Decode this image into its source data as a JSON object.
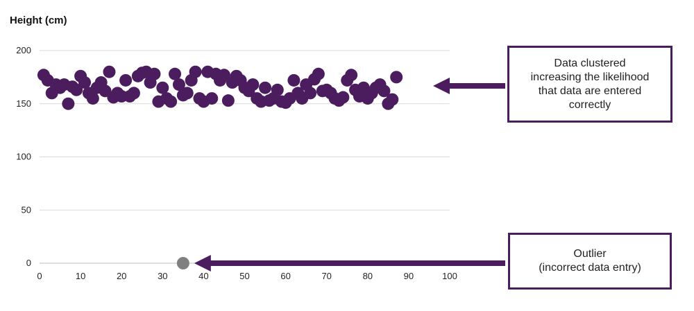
{
  "chart_data": {
    "type": "scatter",
    "ylabel": "Height (cm)",
    "xlabel": "",
    "xlim": [
      0,
      100
    ],
    "ylim": [
      0,
      200
    ],
    "xticks": [
      0,
      10,
      20,
      30,
      40,
      50,
      60,
      70,
      80,
      90,
      100
    ],
    "yticks": [
      0,
      50,
      100,
      150,
      200
    ],
    "grid": "horizontal",
    "colors": {
      "cluster": "#4b1c5e",
      "outlier": "#808080",
      "arrow": "#4b1c5e",
      "grid": "#d9d9d9"
    },
    "series": [
      {
        "points": [
          [
            1,
            177
          ],
          [
            2,
            172
          ],
          [
            3,
            160
          ],
          [
            4,
            168
          ],
          [
            5,
            165
          ],
          [
            6,
            168
          ],
          [
            7,
            150
          ],
          [
            8,
            166
          ],
          [
            9,
            163
          ],
          [
            10,
            176
          ],
          [
            11,
            170
          ],
          [
            12,
            160
          ],
          [
            13,
            155
          ],
          [
            14,
            165
          ],
          [
            15,
            170
          ],
          [
            16,
            162
          ],
          [
            17,
            180
          ],
          [
            18,
            156
          ],
          [
            19,
            160
          ],
          [
            20,
            157
          ],
          [
            21,
            172
          ],
          [
            22,
            157
          ],
          [
            23,
            160
          ],
          [
            24,
            176
          ],
          [
            25,
            179
          ],
          [
            26,
            180
          ],
          [
            27,
            170
          ],
          [
            28,
            178
          ],
          [
            29,
            152
          ],
          [
            30,
            165
          ],
          [
            31,
            155
          ],
          [
            32,
            152
          ],
          [
            33,
            178
          ],
          [
            34,
            168
          ],
          [
            35,
            158
          ],
          [
            36,
            160
          ],
          [
            37,
            172
          ],
          [
            38,
            180
          ],
          [
            39,
            155
          ],
          [
            40,
            152
          ],
          [
            41,
            180
          ],
          [
            42,
            155
          ],
          [
            43,
            178
          ],
          [
            44,
            172
          ],
          [
            45,
            177
          ],
          [
            46,
            153
          ],
          [
            47,
            170
          ],
          [
            48,
            176
          ],
          [
            49,
            172
          ],
          [
            50,
            165
          ],
          [
            51,
            162
          ],
          [
            52,
            168
          ],
          [
            53,
            155
          ],
          [
            54,
            152
          ],
          [
            55,
            165
          ],
          [
            56,
            153
          ],
          [
            57,
            155
          ],
          [
            58,
            163
          ],
          [
            59,
            152
          ],
          [
            60,
            151
          ],
          [
            61,
            155
          ],
          [
            62,
            172
          ],
          [
            63,
            160
          ],
          [
            64,
            155
          ],
          [
            65,
            168
          ],
          [
            66,
            160
          ],
          [
            67,
            173
          ],
          [
            68,
            178
          ],
          [
            69,
            162
          ],
          [
            70,
            163
          ],
          [
            71,
            160
          ],
          [
            72,
            155
          ],
          [
            73,
            153
          ],
          [
            74,
            156
          ],
          [
            75,
            172
          ],
          [
            76,
            177
          ],
          [
            77,
            163
          ],
          [
            78,
            157
          ],
          [
            79,
            165
          ],
          [
            80,
            155
          ],
          [
            81,
            160
          ],
          [
            82,
            165
          ],
          [
            83,
            168
          ],
          [
            84,
            162
          ],
          [
            85,
            150
          ],
          [
            86,
            154
          ],
          [
            87,
            175
          ]
        ]
      },
      {
        "points": [
          [
            35,
            0
          ]
        ]
      }
    ],
    "annotations": [
      {
        "id": "cluster",
        "lines": [
          "Data clustered",
          "increasing the likelihood",
          "that data are entered",
          "correctly"
        ]
      },
      {
        "id": "outlier",
        "lines": [
          "Outlier",
          "(incorrect data entry)"
        ]
      }
    ]
  }
}
